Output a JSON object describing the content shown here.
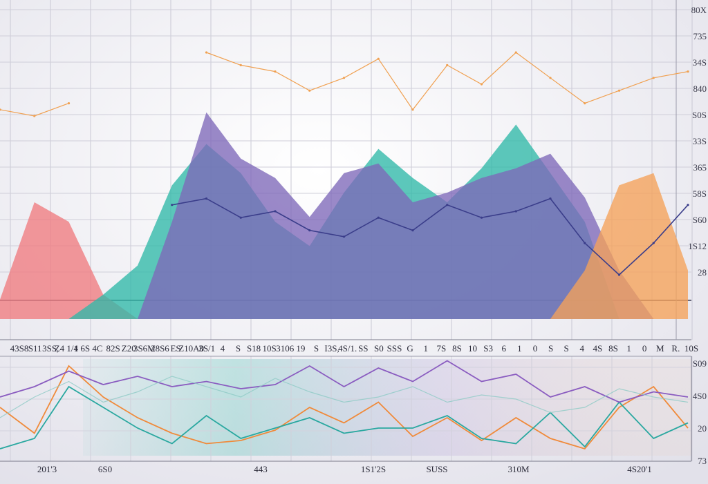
{
  "chart_data": [
    {
      "type": "area",
      "panel": "top",
      "ylim": [
        0,
        100
      ],
      "grid": true,
      "y_ticks": [
        "80X",
        "735",
        "34S",
        "840",
        "S0S",
        "33S",
        "365",
        "58S",
        "S60",
        "1S12",
        "28"
      ],
      "x_ticks": [
        "43S8",
        "S11",
        "3SS,",
        "Z4 1/4",
        "1 6S",
        "4C",
        "82S",
        "Z20",
        "3S6M",
        "28S6",
        "ES",
        "Z10A0",
        "3S/1",
        "4",
        "S",
        "S18",
        "10S",
        "3106",
        "19",
        "S",
        "I3S,",
        "4S/1.",
        "SS",
        "S0",
        "SSS",
        "G",
        "1",
        "7S",
        "8S",
        "10",
        "S3",
        "6",
        "1",
        "0",
        "S",
        "S",
        "4",
        "4S",
        "8S",
        "1",
        "0",
        "M",
        "R.",
        "10S"
      ],
      "x": [
        0,
        5,
        10,
        15,
        20,
        25,
        30,
        35,
        40,
        45,
        50,
        55,
        60,
        65,
        70,
        75,
        80,
        85,
        90,
        95,
        100
      ],
      "series": [
        {
          "color": "#ef7b7f",
          "values": [
            8,
            48,
            40,
            10,
            0,
            0,
            0,
            0,
            0,
            0,
            0,
            0,
            0,
            0,
            0,
            0,
            0,
            0,
            0,
            0,
            0
          ]
        },
        {
          "color": "#2fb9a8",
          "values": [
            0,
            0,
            0,
            10,
            22,
            55,
            72,
            60,
            40,
            30,
            52,
            70,
            58,
            48,
            62,
            80,
            60,
            40,
            0,
            0,
            0
          ]
        },
        {
          "color": "#7d68b8",
          "values": [
            0,
            0,
            0,
            0,
            0,
            40,
            85,
            66,
            58,
            42,
            60,
            64,
            48,
            52,
            58,
            62,
            68,
            50,
            20,
            0,
            0
          ]
        },
        {
          "color": "#f5a158",
          "values": [
            0,
            0,
            0,
            0,
            0,
            0,
            0,
            0,
            0,
            0,
            0,
            0,
            0,
            0,
            0,
            0,
            0,
            20,
            55,
            60,
            20
          ]
        }
      ],
      "lines": [
        {
          "name": "",
          "color": "#f0a050",
          "values": [
            72,
            70,
            74,
            0,
            0,
            0,
            90,
            86,
            84,
            78,
            82,
            88,
            72,
            86,
            80,
            90,
            82,
            74,
            78,
            82,
            84
          ]
        },
        {
          "name": "",
          "color": "#3a3d8a",
          "values": [
            0,
            0,
            0,
            0,
            0,
            42,
            44,
            38,
            40,
            34,
            32,
            38,
            34,
            42,
            38,
            40,
            44,
            30,
            20,
            30,
            42
          ]
        }
      ]
    },
    {
      "type": "line",
      "panel": "bottom",
      "ylim": [
        0,
        100
      ],
      "grid": true,
      "y_ticks": [
        "S09",
        "4S0",
        "20",
        "73"
      ],
      "x_ticks": [
        "201'3",
        "6S0",
        "443",
        "1S1'2S",
        "SUSS",
        "310M",
        "4S20'1"
      ],
      "x": [
        0,
        5,
        10,
        15,
        20,
        25,
        30,
        35,
        40,
        45,
        50,
        55,
        60,
        65,
        70,
        75,
        80,
        85,
        90,
        95,
        100
      ],
      "series": [
        {
          "name": "",
          "color": "#f08a3a",
          "values": [
            50,
            25,
            90,
            60,
            40,
            25,
            15,
            18,
            28,
            50,
            35,
            55,
            22,
            40,
            18,
            40,
            20,
            10,
            50,
            70,
            30
          ]
        },
        {
          "name": "",
          "color": "#2aa8a0",
          "values": [
            10,
            20,
            70,
            50,
            30,
            15,
            42,
            20,
            30,
            40,
            25,
            30,
            30,
            42,
            20,
            15,
            45,
            12,
            55,
            20,
            35
          ]
        },
        {
          "name": "",
          "color": "#8a5cc0",
          "values": [
            60,
            70,
            85,
            72,
            80,
            70,
            75,
            68,
            72,
            90,
            70,
            88,
            75,
            95,
            75,
            82,
            60,
            70,
            55,
            65,
            60
          ]
        },
        {
          "name": "",
          "color": "#8ecbc6",
          "values": [
            40,
            60,
            75,
            55,
            65,
            80,
            70,
            60,
            78,
            65,
            55,
            60,
            70,
            55,
            62,
            58,
            45,
            50,
            68,
            60,
            55
          ]
        }
      ]
    }
  ]
}
